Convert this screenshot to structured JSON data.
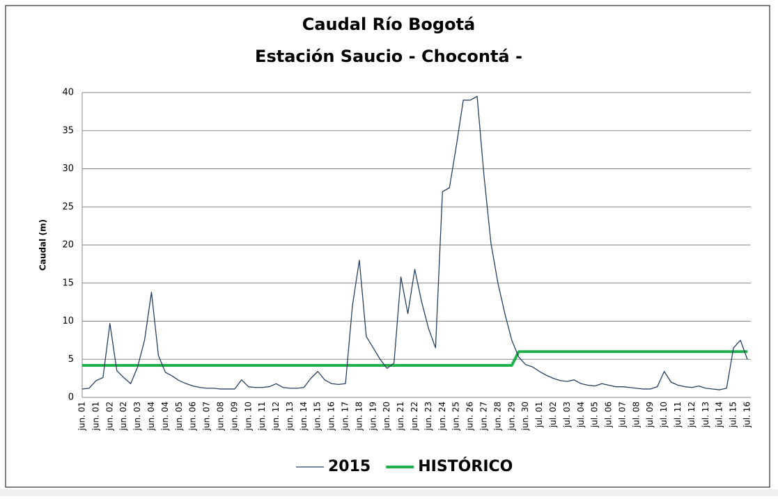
{
  "chart_data": {
    "type": "line",
    "title": "Caudal Río Bogotá",
    "subtitle": "Estación Saucio - Chocontá -",
    "y_label": "Caudal (m)",
    "categories": [
      "jun. 01",
      null,
      "jun. 01",
      null,
      "jun. 02",
      null,
      "jun. 02",
      null,
      "jun. 03",
      null,
      "jun. 04",
      null,
      "jun. 04",
      null,
      "jun. 05",
      null,
      "jun. 06",
      null,
      "jun. 07",
      null,
      "jun. 08",
      null,
      "jun. 09",
      null,
      "jun. 10",
      null,
      "jun. 11",
      null,
      "jun. 12",
      null,
      "jun. 13",
      null,
      "jun. 14",
      null,
      "jun. 15",
      null,
      "jun. 16",
      null,
      "jun. 17",
      null,
      "jun. 18",
      null,
      "jun. 19",
      null,
      "jun. 20",
      null,
      "jun. 21",
      null,
      "jun. 22",
      null,
      "jun. 23",
      null,
      "jun. 24",
      null,
      "jun. 25",
      null,
      "jun. 26",
      null,
      "jun. 27",
      null,
      "jun. 28",
      null,
      "jun. 29",
      null,
      "jun. 30",
      null,
      "jul. 01",
      null,
      "jul. 02",
      null,
      "jul. 03",
      null,
      "jul. 04",
      null,
      "jul. 05",
      null,
      "jul. 06",
      null,
      "jul. 07",
      null,
      "jul. 08",
      null,
      "jul. 09",
      null,
      "jul. 10",
      null,
      "jul. 11",
      null,
      "jul. 12",
      null,
      "jul. 13",
      null,
      "jul. 14",
      null,
      "jul. 15",
      null,
      "jul. 16"
    ],
    "series": [
      {
        "name": "2015",
        "color": "#243f60",
        "width": 1.3,
        "values": [
          1.1,
          1.2,
          2.2,
          2.6,
          9.7,
          3.5,
          2.6,
          1.8,
          4.0,
          7.5,
          13.8,
          5.5,
          3.3,
          2.8,
          2.2,
          1.8,
          1.5,
          1.3,
          1.2,
          1.2,
          1.1,
          1.1,
          1.1,
          2.3,
          1.4,
          1.3,
          1.3,
          1.4,
          1.8,
          1.3,
          1.2,
          1.2,
          1.3,
          2.5,
          3.4,
          2.3,
          1.8,
          1.7,
          1.8,
          12,
          18,
          8.0,
          6.5,
          5.0,
          3.8,
          4.5,
          15.8,
          11,
          16.8,
          12.5,
          9,
          6.5,
          27,
          27.5,
          33,
          39,
          39,
          39.5,
          29,
          20.2,
          15,
          11,
          7.5,
          5.3,
          4.3,
          4.0,
          3.4,
          2.9,
          2.5,
          2.2,
          2.1,
          2.3,
          1.8,
          1.6,
          1.5,
          1.8,
          1.6,
          1.4,
          1.4,
          1.3,
          1.2,
          1.1,
          1.1,
          1.4,
          3.4,
          2.0,
          1.6,
          1.4,
          1.3,
          1.5,
          1.2,
          1.1,
          1.0,
          1.2,
          6.5,
          7.5,
          5.0
        ]
      },
      {
        "name": "HISTÓRICO",
        "color": "#1fb04a",
        "width": 4,
        "values": [
          4.2,
          4.2,
          4.2,
          4.2,
          4.2,
          4.2,
          4.2,
          4.2,
          4.2,
          4.2,
          4.2,
          4.2,
          4.2,
          4.2,
          4.2,
          4.2,
          4.2,
          4.2,
          4.2,
          4.2,
          4.2,
          4.2,
          4.2,
          4.2,
          4.2,
          4.2,
          4.2,
          4.2,
          4.2,
          4.2,
          4.2,
          4.2,
          4.2,
          4.2,
          4.2,
          4.2,
          4.2,
          4.2,
          4.2,
          4.2,
          4.2,
          4.2,
          4.2,
          4.2,
          4.2,
          4.2,
          4.2,
          4.2,
          4.2,
          4.2,
          4.2,
          4.2,
          4.2,
          4.2,
          4.2,
          4.2,
          4.2,
          4.2,
          4.2,
          4.2,
          4.2,
          4.2,
          4.2,
          6.0,
          6.0,
          6.0,
          6.0,
          6.0,
          6.0,
          6.0,
          6.0,
          6.0,
          6.0,
          6.0,
          6.0,
          6.0,
          6.0,
          6.0,
          6.0,
          6.0,
          6.0,
          6.0,
          6.0,
          6.0,
          6.0,
          6.0,
          6.0,
          6.0,
          6.0,
          6.0,
          6.0,
          6.0,
          6.0,
          6.0,
          6.0,
          6.0,
          6.0
        ]
      }
    ],
    "ylim": [
      0,
      40
    ],
    "yticks": [
      0,
      5,
      10,
      15,
      20,
      25,
      30,
      35,
      40
    ],
    "grid": true,
    "legend": "bottom"
  }
}
